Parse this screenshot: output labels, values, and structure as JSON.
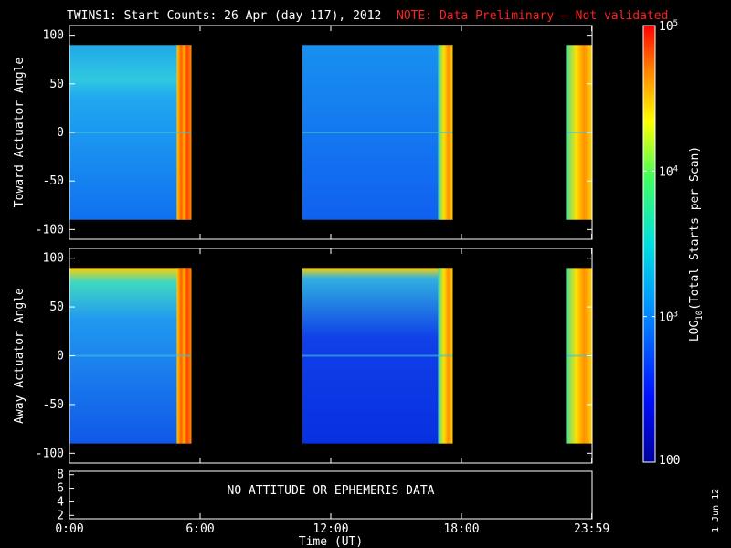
{
  "title": "TWINS1: Start Counts: 26 Apr (day 117), 2012",
  "note": "NOTE: Data Preliminary — Not validated",
  "stamp": "1 Jun 12",
  "colors": {
    "note": "#ff2020"
  },
  "chart_data": [
    {
      "type": "heatmap",
      "name": "toward",
      "ylabel": "Toward Actuator Angle",
      "ylim": [
        -110,
        110
      ],
      "yticks": [
        "100",
        "50",
        "0",
        "-50",
        "-100"
      ],
      "ytick_values": [
        100,
        50,
        0,
        -50,
        -100
      ],
      "xlim": [
        0,
        24
      ],
      "data_hours": [
        [
          0,
          5.6
        ],
        [
          10.7,
          17.6
        ],
        [
          22.8,
          23.99
        ]
      ],
      "data_angle_range": [
        -90,
        90
      ]
    },
    {
      "type": "heatmap",
      "name": "away",
      "ylabel": "Away Actuator Angle",
      "ylim": [
        -110,
        110
      ],
      "yticks": [
        "100",
        "50",
        "0",
        "-50",
        "-100"
      ],
      "ytick_values": [
        100,
        50,
        0,
        -50,
        -100
      ],
      "xlim": [
        0,
        24
      ],
      "data_hours": [
        [
          0,
          5.6
        ],
        [
          10.7,
          17.6
        ],
        [
          22.8,
          23.99
        ]
      ],
      "data_angle_range": [
        -90,
        90
      ]
    },
    {
      "type": "line",
      "name": "attitude",
      "yticks": [
        "8",
        "6",
        "4",
        "2"
      ],
      "ytick_values": [
        8,
        6,
        4,
        2
      ],
      "ylim": [
        1.5,
        8.5
      ],
      "message": "NO ATTITUDE OR EPHEMERIS DATA"
    }
  ],
  "xaxis": {
    "label": "Time (UT)",
    "ticks": [
      "0:00",
      "6:00",
      "12:00",
      "18:00",
      "23:59"
    ],
    "tick_hours": [
      0,
      6,
      12,
      18,
      23.983
    ]
  },
  "colorbar": {
    "label": "LOG10(Total Starts per Scan)",
    "label_main": "LOG",
    "label_sub": "10",
    "label_rest": "(Total Starts per Scan)",
    "scale": "log",
    "ticks": [
      {
        "label": "100",
        "value": 100
      },
      {
        "label": "10",
        "sup": "3",
        "value": 1000
      },
      {
        "label": "10",
        "sup": "4",
        "value": 10000
      },
      {
        "label": "10",
        "sup": "5",
        "value": 100000
      }
    ],
    "range": [
      100,
      100000
    ]
  }
}
